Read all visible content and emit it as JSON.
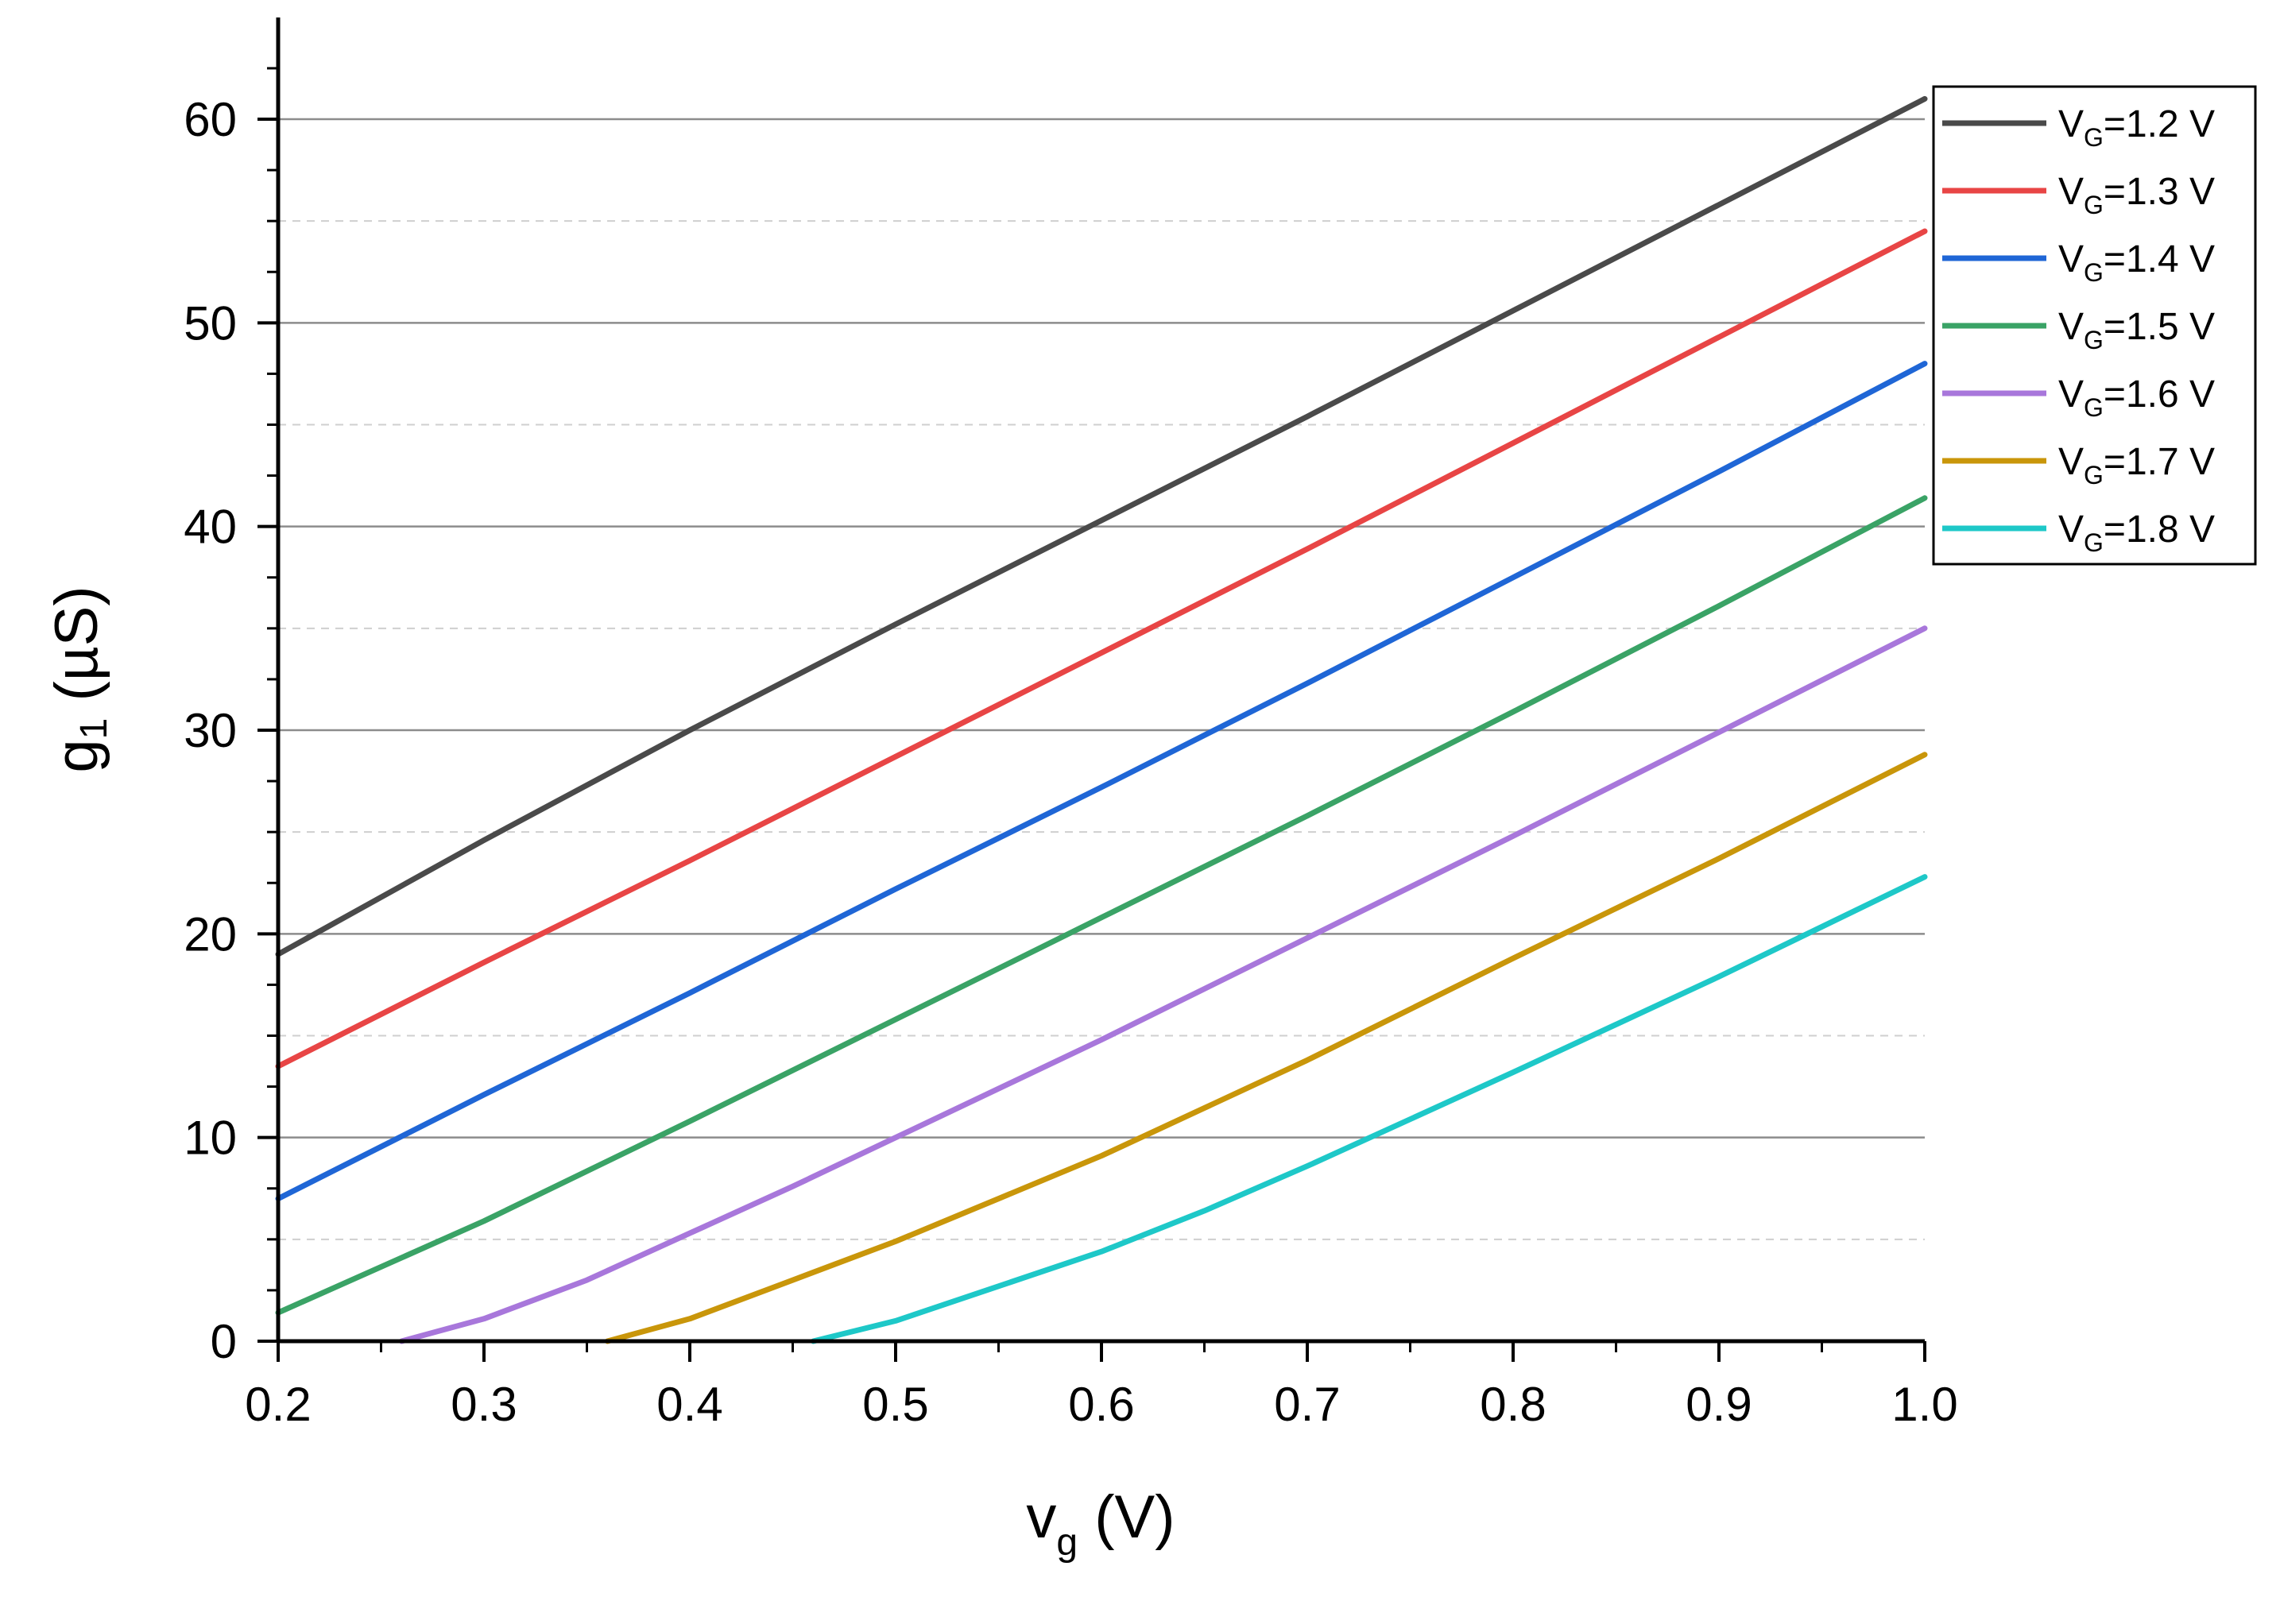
{
  "chart_data": {
    "type": "line",
    "xlabel": {
      "main": "v",
      "sub": "g",
      "rest": " (V)"
    },
    "ylabel": {
      "main": "g",
      "sub": "1",
      "rest": " (µS)"
    },
    "xlim": [
      0.2,
      1.0
    ],
    "ylim": [
      0,
      65
    ],
    "xticks": [
      0.2,
      0.3,
      0.4,
      0.5,
      0.6,
      0.7,
      0.8,
      0.9,
      1.0
    ],
    "xtick_labels": [
      "0.2",
      "0.3",
      "0.4",
      "0.5",
      "0.6",
      "0.7",
      "0.8",
      "0.9",
      "1.0"
    ],
    "yticks": [
      0,
      10,
      20,
      30,
      40,
      50,
      60
    ],
    "ytick_labels": [
      "0",
      "10",
      "20",
      "30",
      "40",
      "50",
      "60"
    ],
    "grid_major": [
      10,
      20,
      30,
      40,
      50,
      60
    ],
    "grid_minor": [
      5,
      15,
      25,
      35,
      45,
      55
    ],
    "legend_position": "top-right",
    "series": [
      {
        "name": "VG=1.2 V",
        "label_main": "V",
        "label_sub": "G",
        "label_rest": "=1.2 V",
        "color": "#4a4a4a",
        "x": [
          0.2,
          0.3,
          0.4,
          0.5,
          0.6,
          0.7,
          0.8,
          0.9,
          1.0
        ],
        "y": [
          19.0,
          24.6,
          30.0,
          35.2,
          40.3,
          45.4,
          50.6,
          55.8,
          61.0
        ]
      },
      {
        "name": "VG=1.3 V",
        "label_main": "V",
        "label_sub": "G",
        "label_rest": "=1.3 V",
        "color": "#e84545",
        "x": [
          0.2,
          0.3,
          0.4,
          0.5,
          0.6,
          0.7,
          0.8,
          0.9,
          1.0
        ],
        "y": [
          13.5,
          18.6,
          23.6,
          28.7,
          33.8,
          38.9,
          44.1,
          49.3,
          54.5
        ]
      },
      {
        "name": "VG=1.4 V",
        "label_main": "V",
        "label_sub": "G",
        "label_rest": "=1.4 V",
        "color": "#1f66d6",
        "x": [
          0.2,
          0.3,
          0.4,
          0.5,
          0.6,
          0.7,
          0.8,
          0.9,
          1.0
        ],
        "y": [
          7.0,
          12.1,
          17.1,
          22.2,
          27.2,
          32.3,
          37.5,
          42.7,
          48.0
        ]
      },
      {
        "name": "VG=1.5 V",
        "label_main": "V",
        "label_sub": "G",
        "label_rest": "=1.5 V",
        "color": "#3aa366",
        "x": [
          0.2,
          0.3,
          0.4,
          0.5,
          0.6,
          0.7,
          0.8,
          0.9,
          1.0
        ],
        "y": [
          1.4,
          5.9,
          10.8,
          15.8,
          20.8,
          25.8,
          30.9,
          36.1,
          41.4
        ]
      },
      {
        "name": "VG=1.6 V",
        "label_main": "V",
        "label_sub": "G",
        "label_rest": "=1.6 V",
        "color": "#a877db",
        "x": [
          0.26,
          0.3,
          0.35,
          0.4,
          0.45,
          0.5,
          0.6,
          0.7,
          0.8,
          0.9,
          1.0
        ],
        "y": [
          0.0,
          1.1,
          3.0,
          5.3,
          7.6,
          10.0,
          14.8,
          19.8,
          24.8,
          29.9,
          35.0
        ]
      },
      {
        "name": "VG=1.7 V",
        "label_main": "V",
        "label_sub": "G",
        "label_rest": "=1.7 V",
        "color": "#c9960a",
        "x": [
          0.36,
          0.4,
          0.45,
          0.5,
          0.55,
          0.6,
          0.7,
          0.8,
          0.9,
          1.0
        ],
        "y": [
          0.0,
          1.1,
          3.0,
          4.9,
          7.0,
          9.1,
          13.8,
          18.8,
          23.7,
          28.8
        ]
      },
      {
        "name": "VG=1.8 V",
        "label_main": "V",
        "label_sub": "G",
        "label_rest": "=1.8 V",
        "color": "#1ec8c8",
        "x": [
          0.46,
          0.5,
          0.55,
          0.6,
          0.65,
          0.7,
          0.8,
          0.9,
          1.0
        ],
        "y": [
          0.0,
          1.0,
          2.7,
          4.4,
          6.4,
          8.6,
          13.2,
          17.9,
          22.8
        ]
      }
    ]
  }
}
